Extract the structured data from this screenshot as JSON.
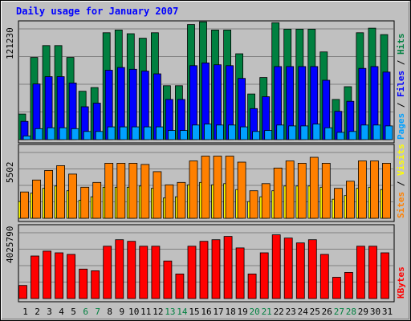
{
  "chart_data": {
    "type": "bar",
    "title": "Daily usage for January 2007",
    "categories": [
      "1",
      "2",
      "3",
      "4",
      "5",
      "6",
      "7",
      "8",
      "9",
      "10",
      "11",
      "12",
      "13",
      "14",
      "15",
      "16",
      "17",
      "18",
      "19",
      "20",
      "21",
      "22",
      "23",
      "24",
      "25",
      "26",
      "27",
      "28",
      "29",
      "30",
      "31"
    ],
    "weekend_days": [
      "6",
      "7",
      "13",
      "14",
      "20",
      "21",
      "27",
      "28"
    ],
    "panels": [
      {
        "id": "hits-pages-files",
        "ymax_label": "121230",
        "ymax": 121230,
        "side_labels": [
          {
            "text": "Pages",
            "color": "#00a0ff"
          },
          {
            "text": " / ",
            "color": "#000000"
          },
          {
            "text": "Files",
            "color": "#0000ff"
          },
          {
            "text": " / ",
            "color": "#000000"
          },
          {
            "text": "Hits",
            "color": "#008040"
          }
        ],
        "series": [
          {
            "name": "Hits",
            "color": "#008040",
            "values": [
              28000,
              90000,
              103000,
              103000,
              90000,
              53000,
              57000,
              117000,
              120000,
              116000,
              111000,
              117000,
              59000,
              59000,
              126000,
              129000,
              120000,
              120000,
              94000,
              50000,
              68000,
              128000,
              121000,
              121000,
              121000,
              96000,
              44000,
              58000,
              117000,
              122000,
              115000
            ]
          },
          {
            "name": "Files",
            "color": "#0000ff",
            "values": [
              20000,
              61000,
              69000,
              69000,
              62000,
              36000,
              40000,
              76000,
              79000,
              77000,
              75000,
              72000,
              44000,
              44000,
              81000,
              84000,
              82000,
              81000,
              67000,
              34000,
              47000,
              80000,
              80000,
              80000,
              80000,
              65000,
              31000,
              42000,
              78000,
              80000,
              74000
            ]
          },
          {
            "name": "Pages",
            "color": "#00a0ff",
            "values": [
              4000,
              12000,
              13000,
              13000,
              12000,
              9000,
              9000,
              14000,
              14000,
              14000,
              14000,
              14000,
              10000,
              10000,
              16000,
              17000,
              16000,
              16000,
              14000,
              9000,
              10000,
              16000,
              15000,
              15000,
              17000,
              13000,
              8000,
              9000,
              16000,
              16000,
              15000
            ]
          }
        ]
      },
      {
        "id": "visits-sites",
        "ymax_label": "5502",
        "ymax": 5502,
        "side_labels": [
          {
            "text": "Sites",
            "color": "#ff8000"
          },
          {
            "text": " / ",
            "color": "#000000"
          },
          {
            "text": "Visits",
            "color": "#ffff00"
          }
        ],
        "series": [
          {
            "name": "Visits",
            "color": "#ffff00",
            "values": [
              1400,
              2100,
              2500,
              2700,
              2300,
              1500,
              1800,
              2600,
              2600,
              2600,
              2700,
              2500,
              1700,
              1800,
              2800,
              3000,
              2800,
              2900,
              2400,
              1400,
              1800,
              2300,
              2700,
              2700,
              2700,
              2600,
              1600,
              1900,
              2500,
              2600,
              2400
            ]
          },
          {
            "name": "Sites",
            "color": "#ff8000",
            "values": [
              2200,
              3200,
              4000,
              4400,
              3700,
              2600,
              3000,
              4600,
              4600,
              4600,
              4500,
              3900,
              2800,
              3000,
              4800,
              5200,
              5200,
              5200,
              4700,
              2300,
              2900,
              4200,
              4800,
              4600,
              5100,
              4600,
              2500,
              3100,
              4800,
              4800,
              4600
            ]
          }
        ]
      },
      {
        "id": "kbytes",
        "ymax_label": "4025790",
        "ymax": 4025790,
        "side_labels": [
          {
            "text": "KBytes",
            "color": "#ff0000"
          }
        ],
        "series": [
          {
            "name": "KBytes",
            "color": "#ff0000",
            "values": [
              800000,
              2600000,
              2900000,
              2800000,
              2700000,
              1800000,
              1700000,
              3200000,
              3600000,
              3500000,
              3200000,
              3200000,
              2300000,
              1500000,
              3200000,
              3500000,
              3600000,
              3800000,
              3100000,
              1500000,
              2800000,
              3900000,
              3700000,
              3400000,
              3600000,
              2700000,
              1300000,
              1600000,
              3200000,
              3200000,
              2800000
            ]
          }
        ]
      }
    ]
  }
}
